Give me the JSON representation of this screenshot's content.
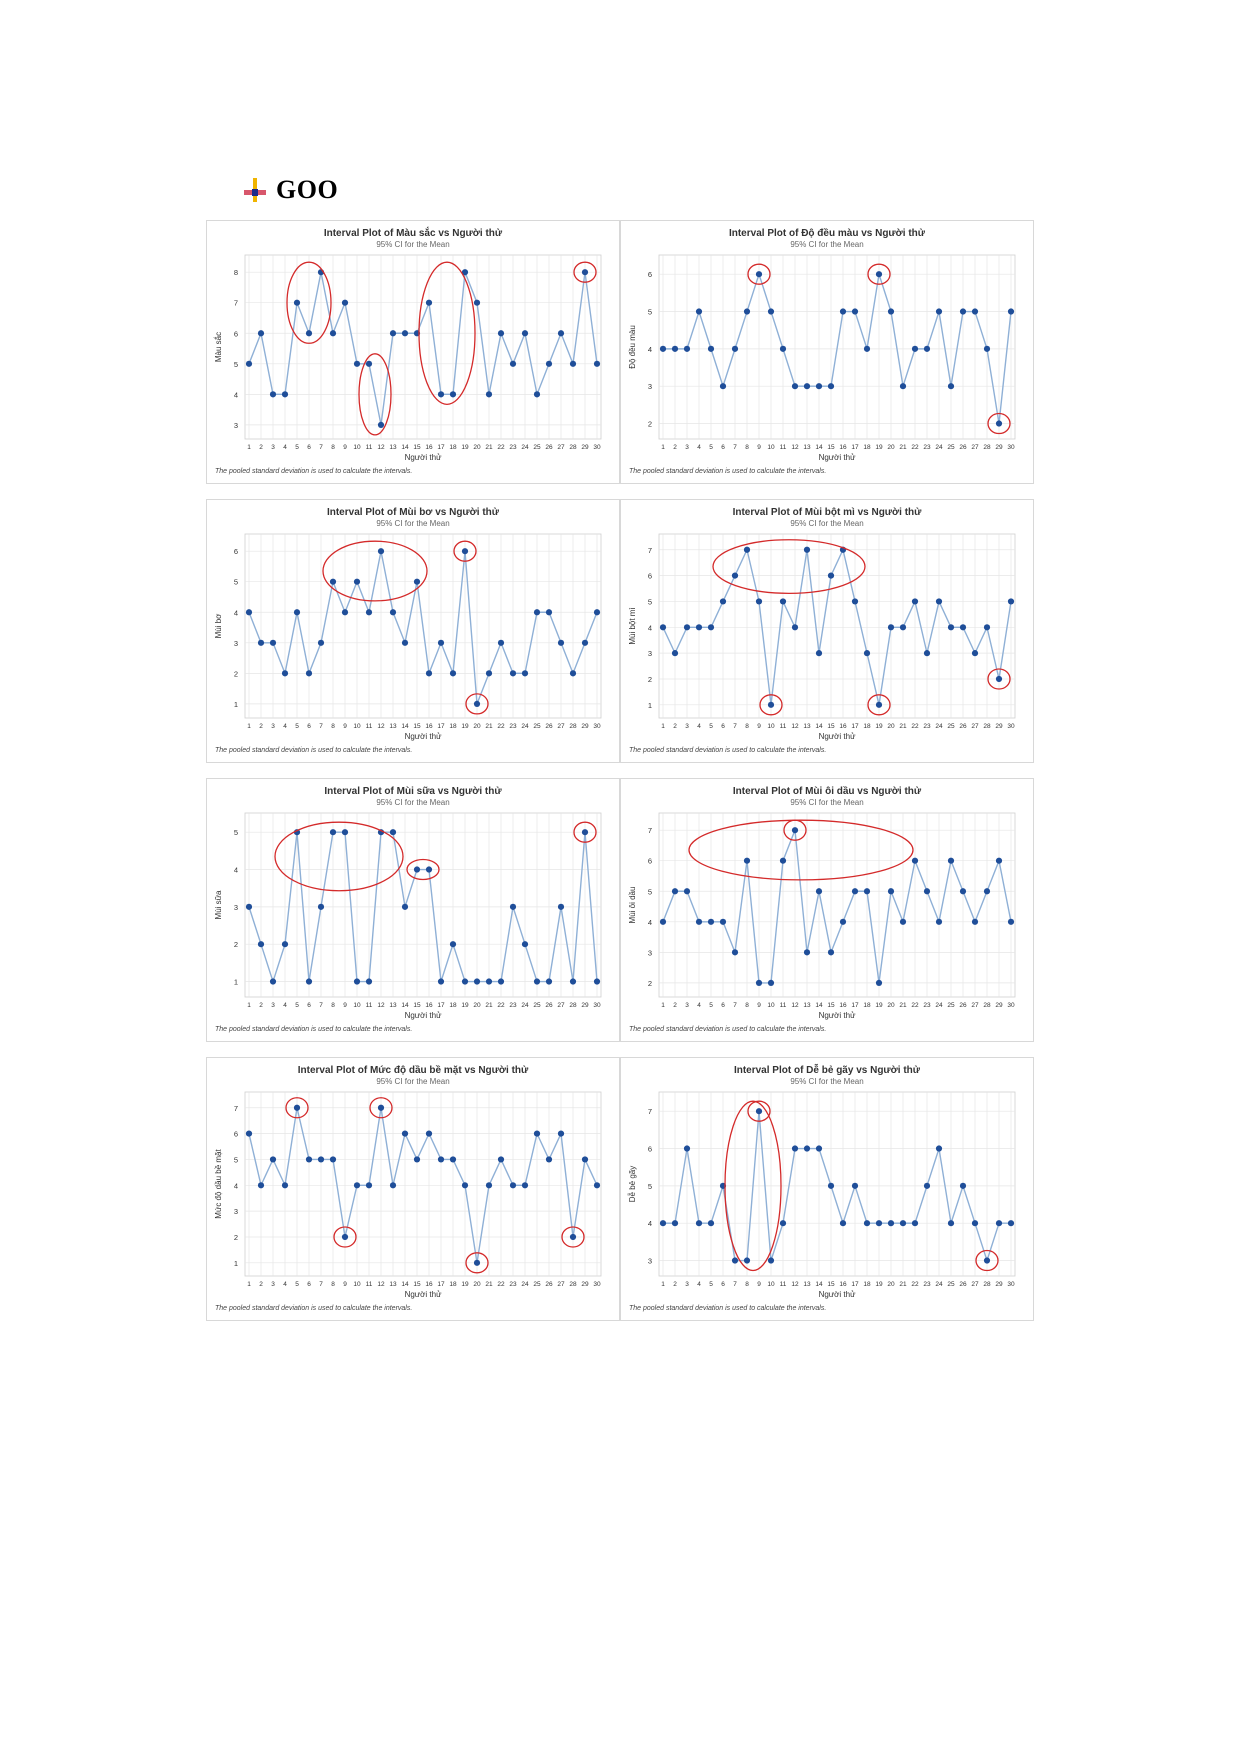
{
  "heading": {
    "text": "GOO"
  },
  "colors": {
    "line": "#8fb0d6",
    "point": "#1f4e99",
    "highlight": "#d42a2a",
    "grid": "#e6e6e6",
    "title": "#333333"
  },
  "chart_data": [
    {
      "type": "line",
      "title": "Interval Plot of Màu sắc vs Người thử",
      "subtitle": "95% CI for the Mean",
      "xlabel": "Người thử",
      "ylabel": "Màu sắc",
      "footnote": "The pooled standard deviation is used to calculate the intervals.",
      "x": [
        1,
        2,
        3,
        4,
        5,
        6,
        7,
        8,
        9,
        10,
        11,
        12,
        13,
        14,
        15,
        16,
        17,
        18,
        19,
        20,
        21,
        22,
        23,
        24,
        25,
        26,
        27,
        28,
        29,
        30
      ],
      "values": [
        5,
        6,
        4,
        4,
        7,
        6,
        8,
        6,
        7,
        5,
        5,
        3,
        6,
        6,
        6,
        7,
        4,
        4,
        8,
        7,
        4,
        6,
        5,
        6,
        4,
        5,
        6,
        5,
        8,
        5
      ],
      "yticks": [
        3,
        4,
        5,
        6,
        7,
        8
      ],
      "ylim": [
        2.8,
        8.3
      ],
      "grid": true,
      "highlights": [
        [
          5,
          7
        ],
        [
          11,
          12
        ],
        [
          16,
          19
        ],
        [
          29,
          29
        ]
      ]
    },
    {
      "type": "line",
      "title": "Interval Plot of Độ đều màu vs Người thử",
      "subtitle": "95% CI for the Mean",
      "xlabel": "Người thử",
      "ylabel": "Độ đều màu",
      "footnote": "The pooled standard deviation is used to calculate the intervals.",
      "x": [
        1,
        2,
        3,
        4,
        5,
        6,
        7,
        8,
        9,
        10,
        11,
        12,
        13,
        14,
        15,
        16,
        17,
        18,
        19,
        20,
        21,
        22,
        23,
        24,
        25,
        26,
        27,
        28,
        29,
        30
      ],
      "values": [
        4,
        4,
        4,
        5,
        4,
        3,
        4,
        5,
        6,
        5,
        4,
        3,
        3,
        3,
        3,
        5,
        5,
        4,
        6,
        5,
        3,
        4,
        4,
        5,
        3,
        5,
        5,
        4,
        2,
        5
      ],
      "yticks": [
        2,
        3,
        4,
        5,
        6
      ],
      "ylim": [
        1.8,
        6.3
      ],
      "grid": true,
      "highlights": [
        [
          9,
          9
        ],
        [
          19,
          19
        ],
        [
          29,
          29
        ]
      ]
    },
    {
      "type": "line",
      "title": "Interval Plot of Mùi bơ vs Người thử",
      "subtitle": "95% CI for the Mean",
      "xlabel": "Người thử",
      "ylabel": "Mùi bơ",
      "footnote": "The pooled standard deviation is used to calculate the intervals.",
      "x": [
        1,
        2,
        3,
        4,
        5,
        6,
        7,
        8,
        9,
        10,
        11,
        12,
        13,
        14,
        15,
        16,
        17,
        18,
        19,
        20,
        21,
        22,
        23,
        24,
        25,
        26,
        27,
        28,
        29,
        30
      ],
      "values": [
        4,
        3,
        3,
        2,
        4,
        2,
        3,
        5,
        4,
        5,
        4,
        6,
        4,
        3,
        5,
        2,
        3,
        2,
        6,
        1,
        2,
        3,
        2,
        2,
        4,
        4,
        3,
        2,
        3,
        4
      ],
      "yticks": [
        1,
        2,
        3,
        4,
        5,
        6
      ],
      "ylim": [
        0.8,
        6.3
      ],
      "grid": true,
      "highlights": [
        [
          8,
          15
        ],
        [
          19,
          19
        ],
        [
          20,
          20
        ]
      ]
    },
    {
      "type": "line",
      "title": "Interval Plot of Mùi bột mì vs Người thử",
      "subtitle": "95% CI for the Mean",
      "xlabel": "Người thử",
      "ylabel": "Mùi bột mì",
      "footnote": "The pooled standard deviation is used to calculate the intervals.",
      "x": [
        1,
        2,
        3,
        4,
        5,
        6,
        7,
        8,
        9,
        10,
        11,
        12,
        13,
        14,
        15,
        16,
        17,
        18,
        19,
        20,
        21,
        22,
        23,
        24,
        25,
        26,
        27,
        28,
        29,
        30
      ],
      "values": [
        4,
        3,
        4,
        4,
        4,
        5,
        6,
        7,
        5,
        1,
        5,
        4,
        7,
        3,
        6,
        7,
        5,
        3,
        1,
        4,
        4,
        5,
        3,
        5,
        4,
        4,
        3,
        4,
        2,
        5
      ],
      "yticks": [
        1,
        2,
        3,
        4,
        5,
        6,
        7
      ],
      "ylim": [
        0.8,
        7.3
      ],
      "grid": true,
      "highlights": [
        [
          6,
          17
        ],
        [
          10,
          10
        ],
        [
          19,
          19
        ],
        [
          29,
          29
        ]
      ]
    },
    {
      "type": "line",
      "title": "Interval Plot of Mùi sữa vs Người thử",
      "subtitle": "95% CI for the Mean",
      "xlabel": "Người thử",
      "ylabel": "Mùi sữa",
      "footnote": "The pooled standard deviation is used to calculate the intervals.",
      "x": [
        1,
        2,
        3,
        4,
        5,
        6,
        7,
        8,
        9,
        10,
        11,
        12,
        13,
        14,
        15,
        16,
        17,
        18,
        19,
        20,
        21,
        22,
        23,
        24,
        25,
        26,
        27,
        28,
        29,
        30
      ],
      "values": [
        3,
        2,
        1,
        2,
        5,
        1,
        3,
        5,
        5,
        1,
        1,
        5,
        5,
        3,
        4,
        4,
        1,
        2,
        1,
        1,
        1,
        1,
        3,
        2,
        1,
        1,
        3,
        1,
        5,
        1
      ],
      "yticks": [
        1,
        2,
        3,
        4,
        5
      ],
      "ylim": [
        0.8,
        5.3
      ],
      "grid": true,
      "highlights": [
        [
          4,
          13
        ],
        [
          15,
          16
        ],
        [
          29,
          29
        ]
      ]
    },
    {
      "type": "line",
      "title": "Interval Plot of Mùi ôi dầu vs Người thử",
      "subtitle": "95% CI for the Mean",
      "xlabel": "Người thử",
      "ylabel": "Mùi ôi dầu",
      "footnote": "The pooled standard deviation is used to calculate the intervals.",
      "x": [
        1,
        2,
        3,
        4,
        5,
        6,
        7,
        8,
        9,
        10,
        11,
        12,
        13,
        14,
        15,
        16,
        17,
        18,
        19,
        20,
        21,
        22,
        23,
        24,
        25,
        26,
        27,
        28,
        29,
        30
      ],
      "values": [
        4,
        5,
        5,
        4,
        4,
        4,
        3,
        6,
        2,
        2,
        6,
        7,
        3,
        5,
        3,
        4,
        5,
        5,
        2,
        5,
        4,
        6,
        5,
        4,
        6,
        5,
        4,
        5,
        6,
        4
      ],
      "yticks": [
        2,
        3,
        4,
        5,
        6,
        7
      ],
      "ylim": [
        1.8,
        7.3
      ],
      "grid": true,
      "highlights": [
        [
          12,
          12
        ],
        [
          4,
          21
        ]
      ]
    },
    {
      "type": "line",
      "title": "Interval Plot of Mức độ dầu bề mặt vs Người thử",
      "subtitle": "95% CI for the Mean",
      "xlabel": "Người thử",
      "ylabel": "Mức độ dầu bề mặt",
      "footnote": "The pooled standard deviation is used to calculate the intervals.",
      "x": [
        1,
        2,
        3,
        4,
        5,
        6,
        7,
        8,
        9,
        10,
        11,
        12,
        13,
        14,
        15,
        16,
        17,
        18,
        19,
        20,
        21,
        22,
        23,
        24,
        25,
        26,
        27,
        28,
        29,
        30
      ],
      "values": [
        6,
        4,
        5,
        4,
        7,
        5,
        5,
        5,
        2,
        4,
        4,
        7,
        4,
        6,
        5,
        6,
        5,
        5,
        4,
        1,
        4,
        5,
        4,
        4,
        6,
        5,
        6,
        2,
        5,
        4
      ],
      "yticks": [
        1,
        2,
        3,
        4,
        5,
        6,
        7
      ],
      "ylim": [
        0.8,
        7.3
      ],
      "grid": true,
      "highlights": [
        [
          5,
          5
        ],
        [
          9,
          9
        ],
        [
          12,
          12
        ],
        [
          20,
          20
        ],
        [
          28,
          28
        ]
      ]
    },
    {
      "type": "line",
      "title": "Interval Plot of Dễ bẻ gãy vs Người thử",
      "subtitle": "95% CI for the Mean",
      "xlabel": "Người thử",
      "ylabel": "Dễ bẻ gãy",
      "footnote": "The pooled standard deviation is used to calculate the intervals.",
      "x": [
        1,
        2,
        3,
        4,
        5,
        6,
        7,
        8,
        9,
        10,
        11,
        12,
        13,
        14,
        15,
        16,
        17,
        18,
        19,
        20,
        21,
        22,
        23,
        24,
        25,
        26,
        27,
        28,
        29,
        30
      ],
      "values": [
        4,
        4,
        6,
        4,
        4,
        5,
        3,
        3,
        7,
        3,
        4,
        6,
        6,
        6,
        5,
        4,
        5,
        4,
        4,
        4,
        4,
        4,
        5,
        6,
        4,
        5,
        4,
        3,
        4,
        4
      ],
      "yticks": [
        3,
        4,
        5,
        6,
        7
      ],
      "ylim": [
        2.8,
        7.3
      ],
      "grid": true,
      "highlights": [
        [
          9,
          9
        ],
        [
          7,
          10
        ],
        [
          28,
          28
        ]
      ]
    }
  ]
}
